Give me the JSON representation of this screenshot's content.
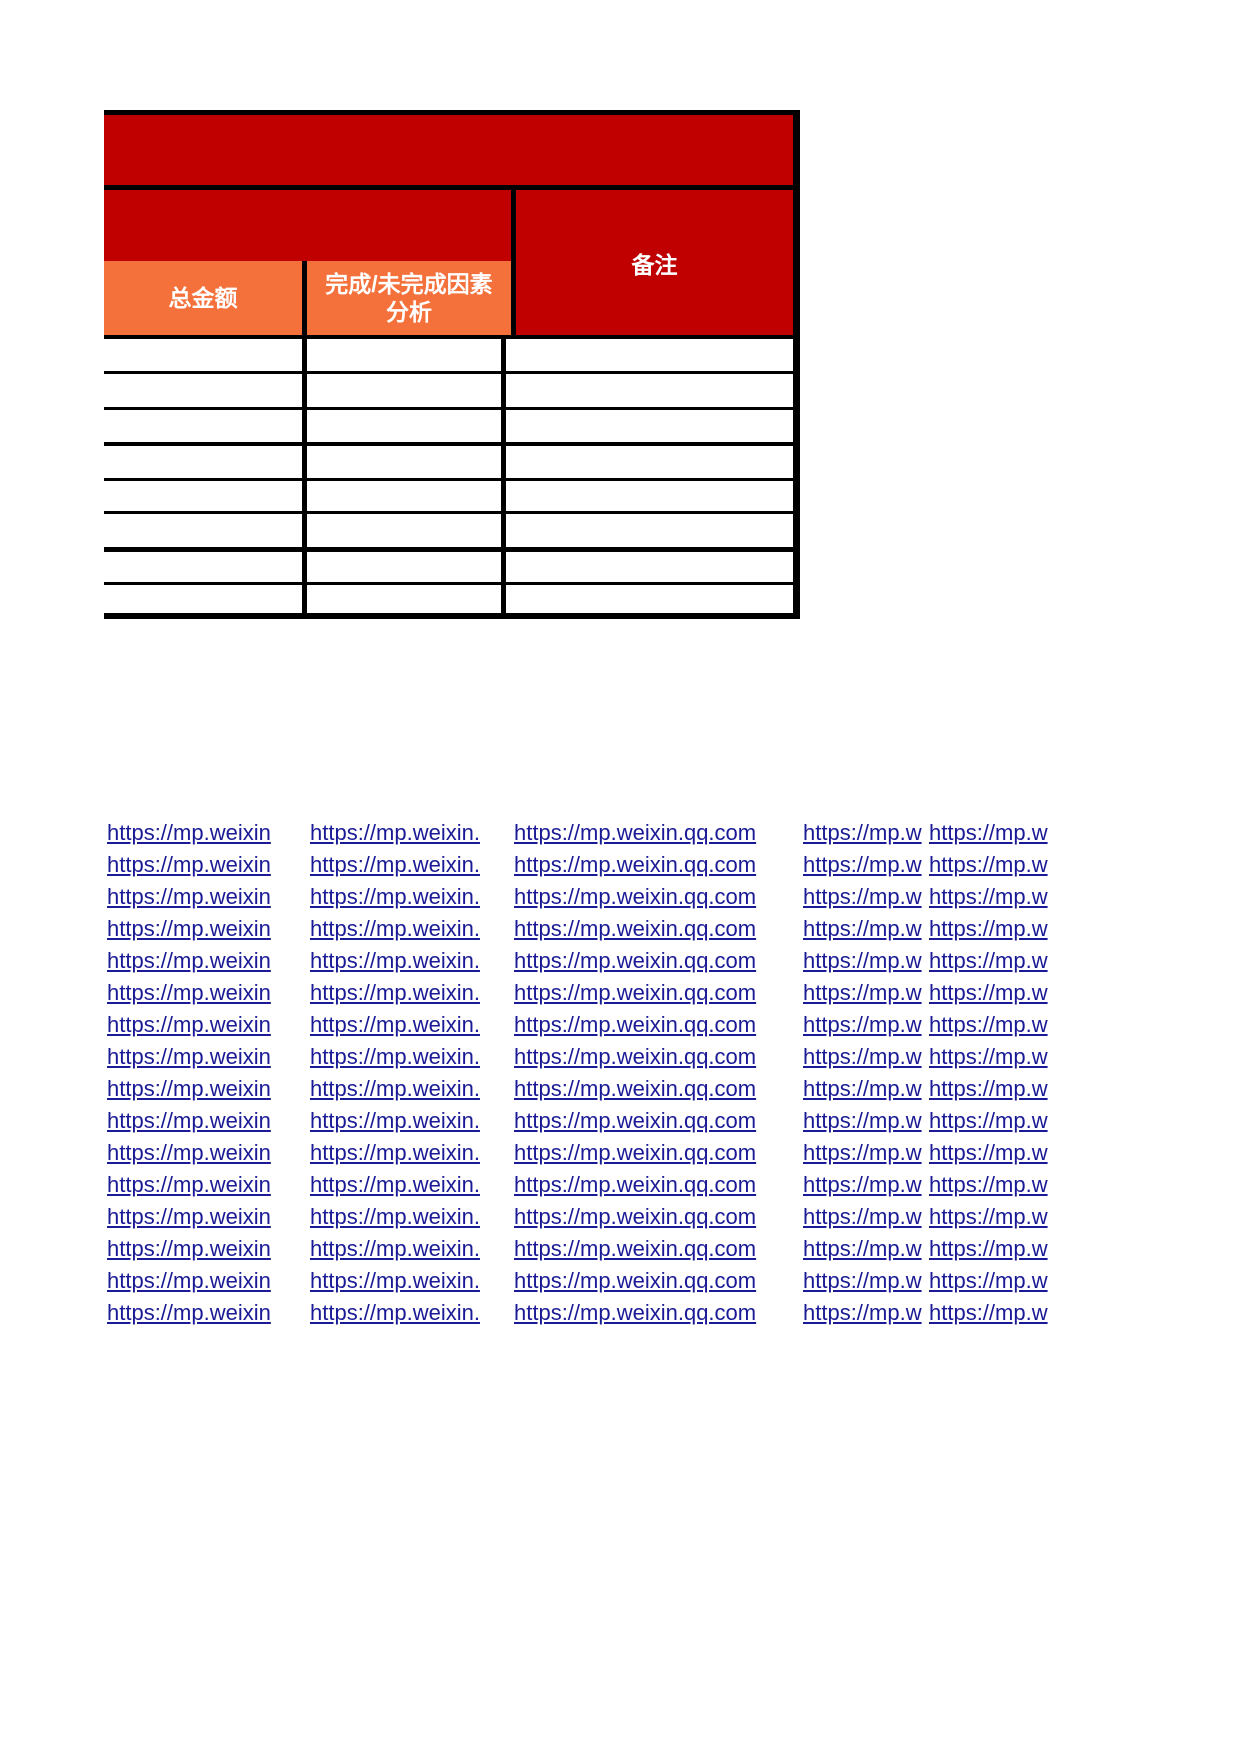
{
  "colors": {
    "banner_red": "#C00000",
    "header_orange": "#F4713C",
    "border_black": "#000000",
    "link_blue": "#1A1A96"
  },
  "table": {
    "banner_title": "",
    "merged_cell_text": "",
    "headers": {
      "total_amount": "总金额",
      "factor_analysis": "完成/未完成因素分析",
      "remark": "备注"
    },
    "body_row_count": 8
  },
  "links": {
    "row_count": 16,
    "columns": [
      "https://mp.weixin",
      "https://mp.weixin.",
      "https://mp.weixin.qq.com",
      "https://mp.w",
      "https://mp.w"
    ]
  }
}
